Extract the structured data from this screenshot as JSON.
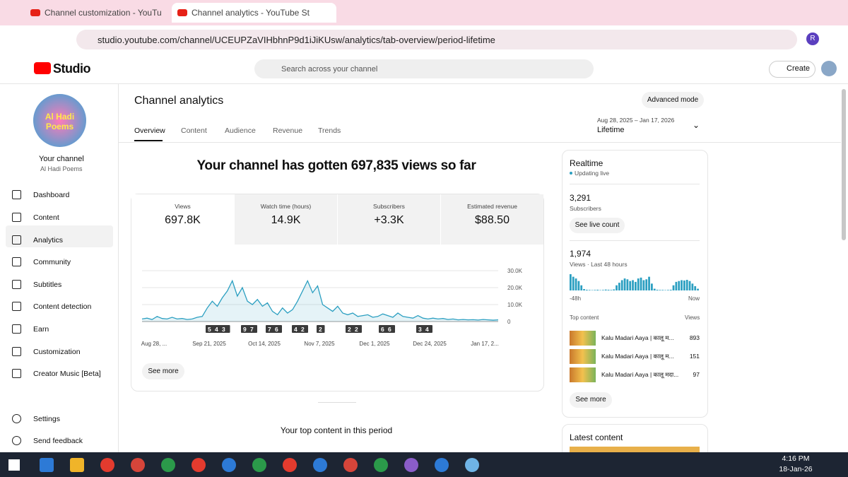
{
  "browser": {
    "tabs": [
      "Channel customization - YouTu",
      "Channel analytics - YouTube St"
    ],
    "url": "studio.youtube.com/channel/UCEUPZaVIHbhnP9d1iJiKUsw/analytics/tab-overview/period-lifetime",
    "profile": "R"
  },
  "header": {
    "logo": "Studio",
    "search_placeholder": "Search across your channel",
    "create": "Create"
  },
  "sidebar": {
    "avatar_text": [
      "Al Hadi",
      "Poems"
    ],
    "channel_title": "Your channel",
    "channel_name": "Al Hadi Poems",
    "items": [
      "Dashboard",
      "Content",
      "Analytics",
      "Community",
      "Subtitles",
      "Content detection",
      "Earn",
      "Customization",
      "Creator Music [Beta]"
    ],
    "footer_items": [
      "Settings",
      "Send feedback"
    ]
  },
  "analytics": {
    "title": "Channel analytics",
    "advanced_mode": "Advanced mode",
    "tabs": [
      "Overview",
      "Content",
      "Audience",
      "Revenue",
      "Trends"
    ],
    "period_range": "Aug 28, 2025 – Jan 17, 2026",
    "period": "Lifetime",
    "headline": "Your channel has gotten 697,835 views so far",
    "metrics": [
      {
        "label": "Views",
        "value": "697.8K"
      },
      {
        "label": "Watch time (hours)",
        "value": "14.9K"
      },
      {
        "label": "Subscribers",
        "value": "+3.3K"
      },
      {
        "label": "Estimated revenue",
        "value": "$88.50"
      }
    ],
    "chart": {
      "type": "line",
      "color": "#2b9fc1",
      "ylim": [
        0,
        30000
      ],
      "yticks": [
        {
          "value": 30000,
          "label": "30.0K"
        },
        {
          "value": 20000,
          "label": "20.0K"
        },
        {
          "value": 10000,
          "label": "10.0K"
        },
        0
      ],
      "x_labels": [
        "Aug 28, ...",
        "Sep 21, 2025",
        "Oct 14, 2025",
        "Nov 7, 2025",
        "Dec 1, 2025",
        "Dec 24, 2025",
        "Jan 17, 2..."
      ],
      "values": [
        1500,
        2000,
        1200,
        3000,
        1800,
        1500,
        2500,
        1500,
        1800,
        1200,
        1500,
        2500,
        3000,
        8000,
        12000,
        9000,
        14000,
        18000,
        24000,
        15000,
        20000,
        12000,
        10000,
        13000,
        9000,
        11000,
        6000,
        4000,
        8000,
        5000,
        7000,
        12000,
        18000,
        24000,
        17000,
        21000,
        10000,
        8000,
        6000,
        9000,
        5000,
        4000,
        5000,
        3000,
        3500,
        4000,
        2500,
        3000,
        4500,
        3500,
        2500,
        5000,
        3000,
        2500,
        2000,
        3500,
        2000,
        1500,
        2000,
        1500,
        1800,
        1200,
        1500,
        1000,
        1200,
        1000,
        1100,
        900,
        1200,
        1000,
        800,
        1000
      ],
      "markers": [
        "543",
        "97",
        "76",
        "42",
        "2",
        "22",
        "66",
        "34"
      ]
    },
    "see_more": "See more",
    "top_content_title": "Your top content in this period"
  },
  "realtime": {
    "title": "Realtime",
    "status": "Updating live",
    "subscribers": "3,291",
    "subscribers_label": "Subscribers",
    "see_live_count": "See live count",
    "views": "1,974",
    "views_label": "Views · Last 48 hours",
    "chart": {
      "type": "bar",
      "color": "#2b9fc1",
      "values": [
        95,
        80,
        70,
        55,
        30,
        8,
        4,
        3,
        2,
        3,
        4,
        2,
        3,
        5,
        4,
        3,
        6,
        30,
        45,
        60,
        70,
        65,
        55,
        60,
        50,
        70,
        75,
        60,
        65,
        80,
        40,
        10,
        4,
        3,
        3,
        2,
        3,
        4,
        30,
        50,
        55,
        60,
        58,
        62,
        55,
        40,
        25,
        10
      ],
      "x_labels": [
        "-48h",
        "Now"
      ]
    },
    "top_content_label": "Top content",
    "views_col": "Views",
    "items": [
      {
        "title": "Kalu Madari Aaya | कालू म...",
        "views": "893"
      },
      {
        "title": "Kalu Madari Aaya | कालू म...",
        "views": "151"
      },
      {
        "title": "Kalu Madari Aaya | कालू मदा...",
        "views": "97"
      }
    ],
    "see_more": "See more",
    "latest_content": "Latest content"
  },
  "taskbar": {
    "time": "4:16 PM",
    "date": "18-Jan-26"
  }
}
